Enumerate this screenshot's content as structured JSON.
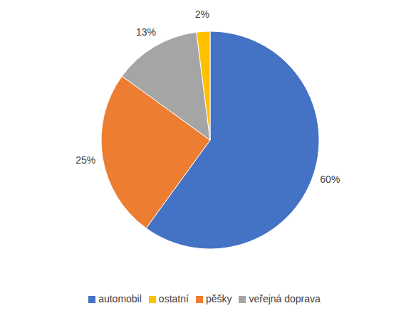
{
  "chart_data": {
    "type": "pie",
    "categories": [
      "automobil",
      "pěšky",
      "veřejná doprava",
      "ostatní"
    ],
    "values": [
      60,
      25,
      13,
      2
    ],
    "value_labels": [
      "60%",
      "25%",
      "13%",
      "2%"
    ],
    "colors": [
      "#4472c4",
      "#ed7d31",
      "#a5a5a5",
      "#ffc000"
    ],
    "data_labels": true,
    "legend": "bottom"
  }
}
